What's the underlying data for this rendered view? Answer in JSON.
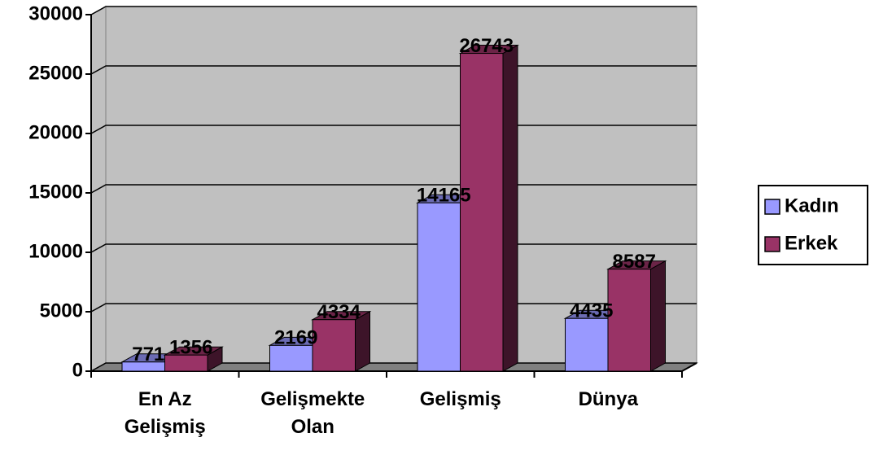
{
  "chart_data": {
    "type": "bar3d",
    "categories": [
      "En Az Gelişmiş",
      "Gelişmekte Olan",
      "Gelişmiş",
      "Dünya"
    ],
    "series": [
      {
        "name": "Kadın",
        "color": "#9999ff",
        "values": [
          771,
          2169,
          14165,
          4435
        ]
      },
      {
        "name": "Erkek",
        "color": "#993366",
        "values": [
          1356,
          4334,
          26743,
          8587
        ]
      }
    ],
    "ylim": [
      0,
      30000
    ],
    "yticks": [
      0,
      5000,
      10000,
      15000,
      20000,
      25000,
      30000
    ],
    "grid": true,
    "legend": "right"
  }
}
